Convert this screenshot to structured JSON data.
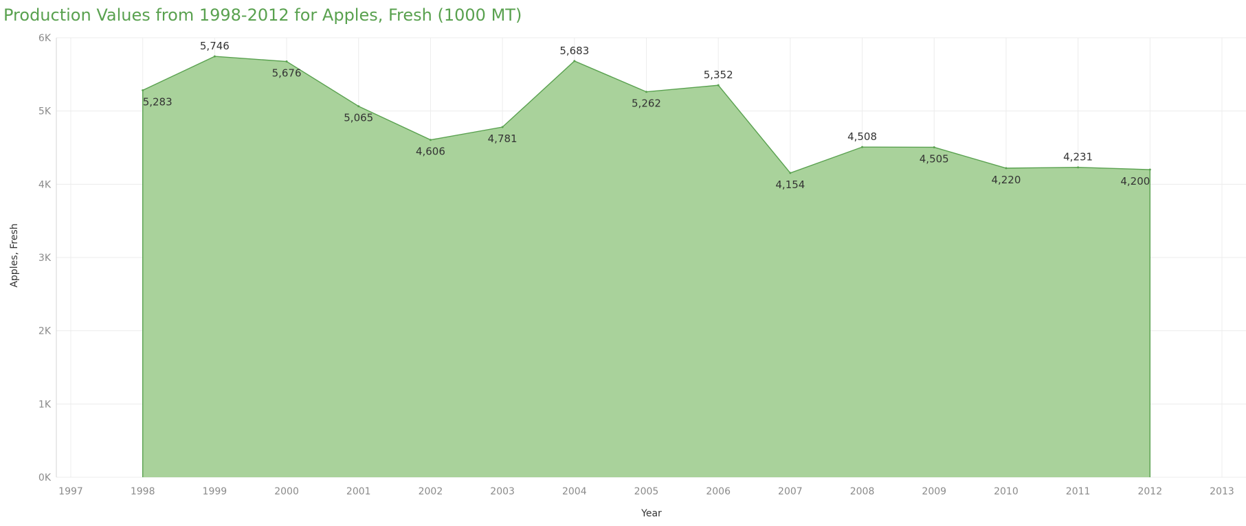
{
  "chart_data": {
    "type": "area",
    "title": "Production Values from 1998-2012 for Apples, Fresh (1000 MT)",
    "xlabel": "Year",
    "ylabel": "Apples, Fresh",
    "x": [
      1998,
      1999,
      2000,
      2001,
      2002,
      2003,
      2004,
      2005,
      2006,
      2007,
      2008,
      2009,
      2010,
      2011,
      2012
    ],
    "values": [
      5283,
      5746,
      5676,
      5065,
      4606,
      4781,
      5683,
      5262,
      5352,
      4154,
      4508,
      4505,
      4220,
      4231,
      4200
    ],
    "data_labels": [
      "5,283",
      "5,746",
      "5,676",
      "5,065",
      "4,606",
      "4,781",
      "5,683",
      "5,262",
      "5,352",
      "4,154",
      "4,508",
      "4,505",
      "4,220",
      "4,231",
      "4,200"
    ],
    "xlim": [
      1997,
      2013
    ],
    "ylim": [
      0,
      6000
    ],
    "x_ticks": [
      "1997",
      "1998",
      "1999",
      "2000",
      "2001",
      "2002",
      "2003",
      "2004",
      "2005",
      "2006",
      "2007",
      "2008",
      "2009",
      "2010",
      "2011",
      "2012",
      "2013"
    ],
    "y_ticks": [
      {
        "value": 0,
        "label": "0K"
      },
      {
        "value": 1000,
        "label": "1K"
      },
      {
        "value": 2000,
        "label": "2K"
      },
      {
        "value": 3000,
        "label": "3K"
      },
      {
        "value": 4000,
        "label": "4K"
      },
      {
        "value": 5000,
        "label": "5K"
      },
      {
        "value": 6000,
        "label": "6K"
      }
    ],
    "grid": true,
    "colors": {
      "fill": "#a9d29b",
      "line": "#59a14f",
      "title": "#59a14f"
    }
  }
}
